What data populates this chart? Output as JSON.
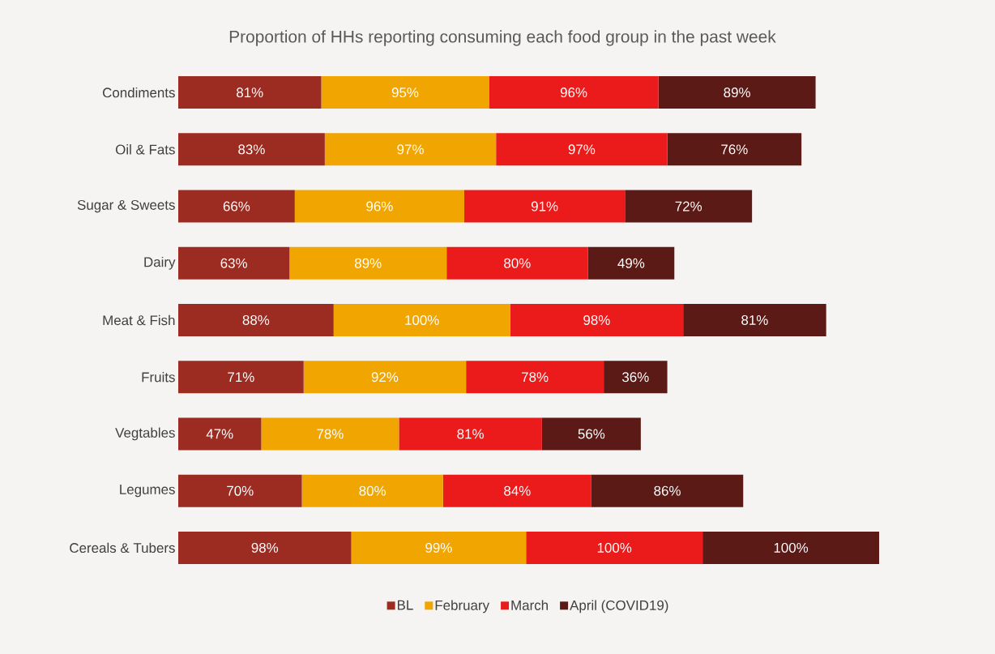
{
  "chart_data": {
    "type": "bar",
    "orientation": "horizontal",
    "stacked": true,
    "title": "Proportion of HHs reporting consuming each food group in the past week",
    "categories": [
      "Condiments",
      "Oil & Fats",
      "Sugar & Sweets",
      "Dairy",
      "Meat & Fish",
      "Fruits",
      "Vegtables",
      "Legumes",
      "Cereals & Tubers"
    ],
    "series": [
      {
        "name": "BL",
        "color": "#9c2b22",
        "values": [
          81,
          83,
          66,
          63,
          88,
          71,
          47,
          70,
          98
        ],
        "value_labels": [
          "81%",
          "83%",
          "66%",
          "63%",
          "88%",
          "71%",
          "47%",
          "70%",
          "98%"
        ]
      },
      {
        "name": "February",
        "color": "#f0a500",
        "values": [
          95,
          97,
          96,
          89,
          100,
          92,
          78,
          80,
          99
        ],
        "value_labels": [
          "95%",
          "97%",
          "96%",
          "89%",
          "100%",
          "92%",
          "78%",
          "80%",
          "99%"
        ]
      },
      {
        "name": "March",
        "color": "#ec1b1b",
        "values": [
          96,
          97,
          91,
          80,
          98,
          78,
          81,
          84,
          100
        ],
        "value_labels": [
          "96%",
          "97%",
          "91%",
          "80%",
          "98%",
          "78%",
          "81%",
          "84%",
          "100%"
        ]
      },
      {
        "name": "April (COVID19)",
        "color": "#5b1a15",
        "values": [
          89,
          76,
          72,
          49,
          81,
          36,
          56,
          86,
          100
        ],
        "value_labels": [
          "89%",
          "76%",
          "72%",
          "49%",
          "81%",
          "36%",
          "56%",
          "86%",
          "100%"
        ]
      }
    ],
    "legend": "bottom"
  }
}
